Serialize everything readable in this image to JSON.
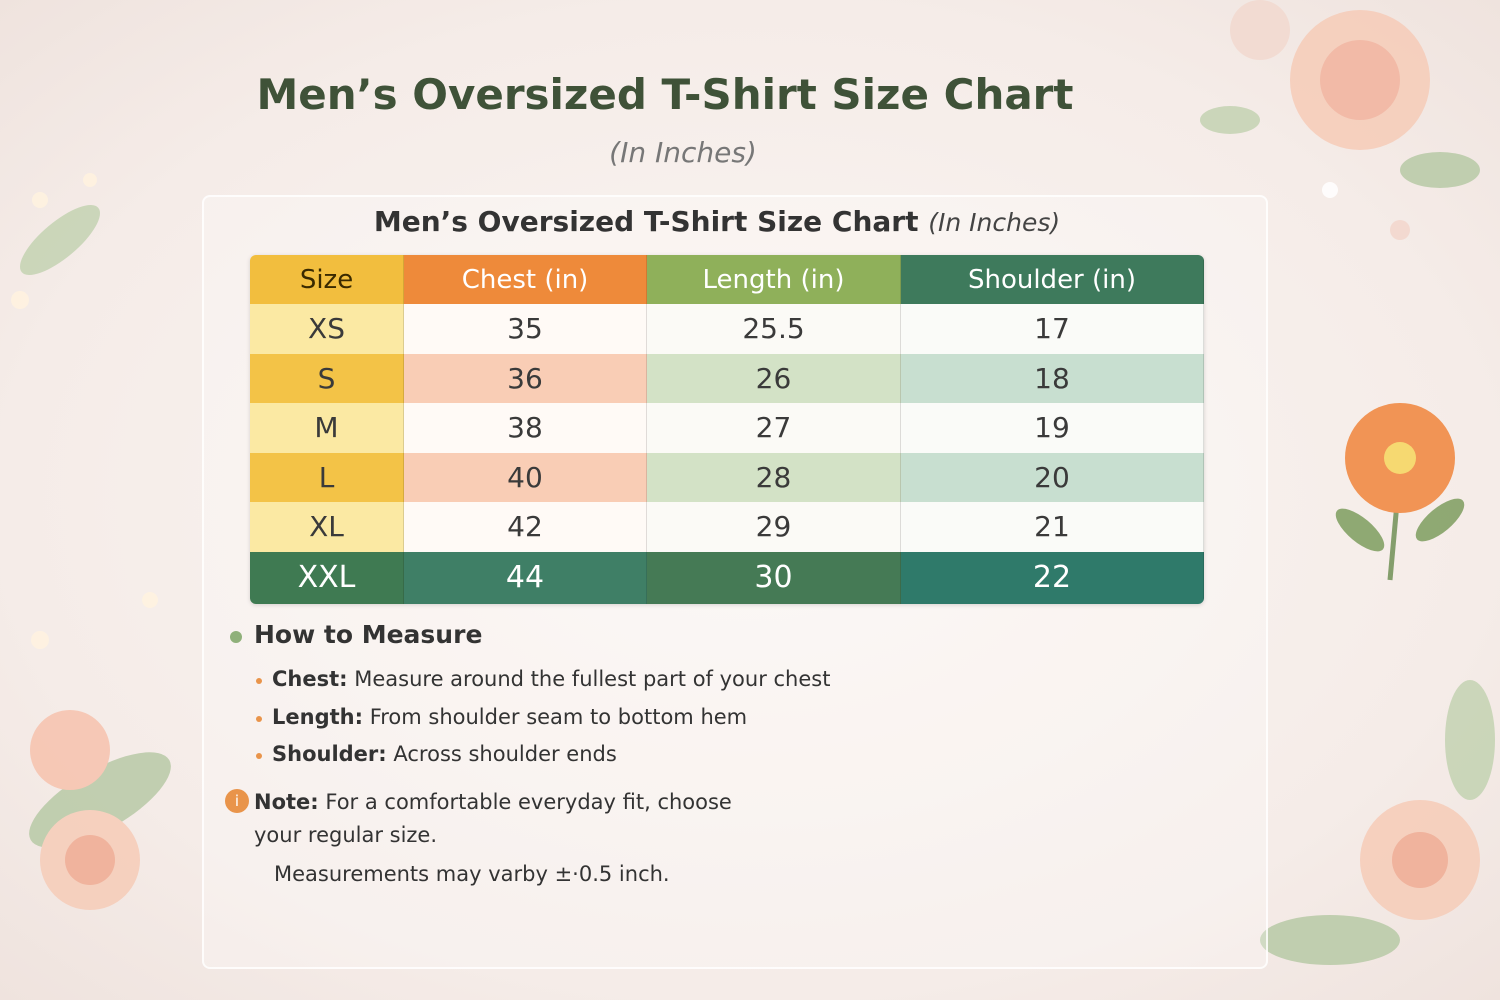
{
  "header": {
    "title": "Men’s Oversized T-Shirt Size Chart",
    "subtitle": "(In Inches)"
  },
  "card": {
    "title": "Men’s Oversized T-Shirt Size Chart",
    "title_note": "(In Inches)"
  },
  "table": {
    "columns": [
      "Size",
      "Chest (in)",
      "Length (in)",
      "Shoulder (in)"
    ],
    "rows": [
      [
        "XS",
        "35",
        "25.5",
        "17"
      ],
      [
        "S",
        "36",
        "26",
        "18"
      ],
      [
        "M",
        "38",
        "27",
        "19"
      ],
      [
        "L",
        "40",
        "28",
        "20"
      ],
      [
        "XL",
        "42",
        "29",
        "21"
      ],
      [
        "XXL",
        "44",
        "30",
        "22"
      ]
    ]
  },
  "measure": {
    "heading": "How to Measure",
    "items": [
      {
        "label": "Chest:",
        "text": "Measure around the fullest part of your chest"
      },
      {
        "label": "Length:",
        "text": "From shoulder seam to bottom hem"
      },
      {
        "label": "Shoulder:",
        "text": "Across shoulder ends"
      }
    ]
  },
  "note": {
    "icon": "i",
    "label": "Note:",
    "text": "For a comfortable everyday fit, choose your regular size."
  },
  "footnote": "Measurements may varby ±·0.5 inch."
}
